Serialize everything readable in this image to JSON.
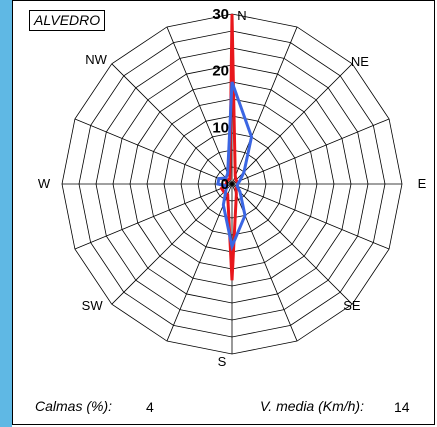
{
  "station": "ALVEDRO",
  "footer": {
    "calms_label": "Calmas (%):",
    "calms_value": "4",
    "speed_label": "V. media (Km/h):",
    "speed_value": "14"
  },
  "colors": {
    "series_1": "#e8171c",
    "series_2": "#3b66e3",
    "grid": "#000000",
    "side_bar": "#5fb8e4"
  },
  "chart_data": {
    "type": "radar",
    "directions": [
      "N",
      "NNE",
      "NE",
      "ENE",
      "E",
      "ESE",
      "SE",
      "SSE",
      "S",
      "SSW",
      "SW",
      "WSW",
      "W",
      "WNW",
      "NW",
      "NNW"
    ],
    "direction_labels": {
      "N": "N",
      "NE": "NE",
      "E": "E",
      "SE": "SE",
      "S": "S",
      "SW": "SW",
      "W": "W",
      "NW": "NW"
    },
    "radial_ticks": [
      0,
      10,
      20,
      30
    ],
    "rlim": [
      0,
      30
    ],
    "rings": 10,
    "series": [
      {
        "color": "#e8171c",
        "values": [
          30,
          1.5,
          1,
          1,
          1,
          1,
          1,
          2,
          17,
          2,
          2,
          2,
          1,
          1,
          1,
          1
        ]
      },
      {
        "color": "#3b66e3",
        "values": [
          18,
          9,
          3,
          1.5,
          1,
          1,
          2,
          6,
          11,
          4,
          1.5,
          1,
          2.5,
          2.5,
          1.5,
          2
        ]
      }
    ]
  }
}
